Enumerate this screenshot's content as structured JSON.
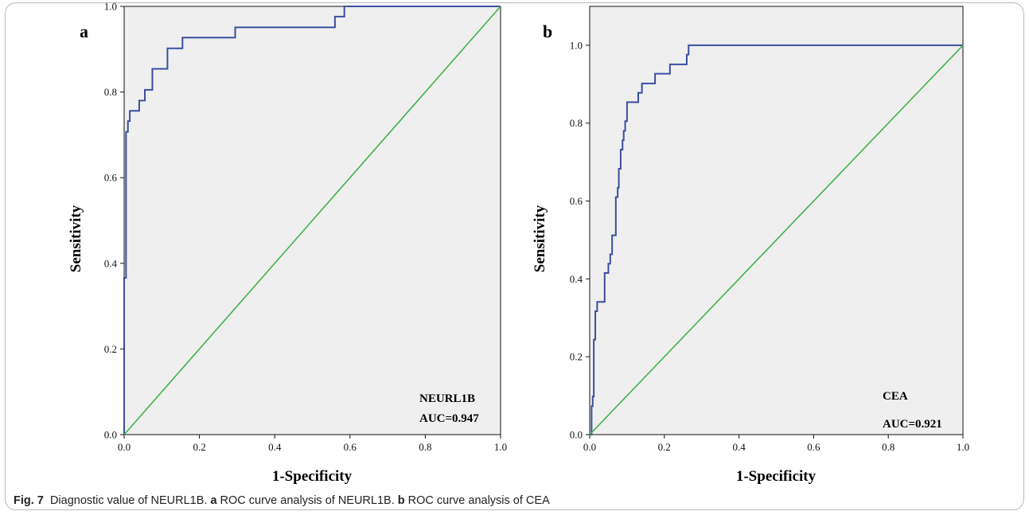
{
  "figure": {
    "caption": {
      "label": "Fig. 7",
      "text_1": "Diagnostic value of NEURL1B. ",
      "ref_a": "a",
      "text_2": " ROC curve analysis of NEURL1B. ",
      "ref_b": "b",
      "text_3": " ROC curve analysis of CEA"
    },
    "colors": {
      "plot_background": "#efefef",
      "roc_curve": "#3a4fa0",
      "reference_line": "#3fb34a"
    }
  },
  "chart_data": [
    {
      "type": "line",
      "panel_label": "a",
      "xlabel": "1-Specificity",
      "ylabel": "Sensitivity",
      "xlim": [
        0,
        1
      ],
      "ylim": [
        0,
        1
      ],
      "xticks": [
        "0.0",
        "0.2",
        "0.4",
        "0.6",
        "0.8",
        "1.0"
      ],
      "yticks": [
        "0.0",
        "0.2",
        "0.4",
        "0.6",
        "0.8",
        "1.0"
      ],
      "annotations": [
        "NEURL1B",
        "AUC=0.947"
      ],
      "series": [
        {
          "role": "roc",
          "x": [
            0,
            0,
            0.005,
            0.005,
            0.01,
            0.01,
            0.015,
            0.015,
            0.04,
            0.04,
            0.055,
            0.055,
            0.075,
            0.075,
            0.115,
            0.115,
            0.155,
            0.155,
            0.295,
            0.295,
            0.56,
            0.56,
            0.585,
            0.585,
            1.0
          ],
          "y": [
            0,
            0.366,
            0.366,
            0.707,
            0.707,
            0.732,
            0.732,
            0.756,
            0.756,
            0.78,
            0.78,
            0.805,
            0.805,
            0.854,
            0.854,
            0.902,
            0.902,
            0.927,
            0.927,
            0.951,
            0.951,
            0.976,
            0.976,
            1.0,
            1.0
          ]
        },
        {
          "role": "reference",
          "x": [
            0,
            1
          ],
          "y": [
            0,
            1
          ]
        }
      ]
    },
    {
      "type": "line",
      "panel_label": "b",
      "xlabel": "1-Specificity",
      "ylabel": "Sensitivity",
      "xlim": [
        0,
        1
      ],
      "ylim": [
        0,
        1.1
      ],
      "xticks": [
        "0.0",
        "0.2",
        "0.4",
        "0.6",
        "0.8",
        "1.0"
      ],
      "yticks": [
        "0.0",
        "0.2",
        "0.4",
        "0.6",
        "0.8",
        "1.0"
      ],
      "annotations": [
        "CEA",
        "AUC=0.921"
      ],
      "series": [
        {
          "role": "roc",
          "x": [
            0,
            0.005,
            0.005,
            0.008,
            0.008,
            0.011,
            0.011,
            0.015,
            0.015,
            0.02,
            0.02,
            0.04,
            0.04,
            0.05,
            0.05,
            0.055,
            0.055,
            0.06,
            0.06,
            0.07,
            0.07,
            0.075,
            0.075,
            0.078,
            0.078,
            0.083,
            0.083,
            0.088,
            0.088,
            0.091,
            0.091,
            0.095,
            0.095,
            0.1,
            0.1,
            0.13,
            0.13,
            0.14,
            0.14,
            0.175,
            0.175,
            0.215,
            0.215,
            0.26,
            0.26,
            0.265,
            0.265,
            0.38,
            0.38,
            1.0
          ],
          "y": [
            0,
            0,
            0.073,
            0.073,
            0.098,
            0.098,
            0.244,
            0.244,
            0.317,
            0.317,
            0.341,
            0.341,
            0.415,
            0.415,
            0.439,
            0.439,
            0.463,
            0.463,
            0.512,
            0.512,
            0.61,
            0.61,
            0.634,
            0.634,
            0.683,
            0.683,
            0.732,
            0.732,
            0.756,
            0.756,
            0.78,
            0.78,
            0.805,
            0.805,
            0.854,
            0.854,
            0.878,
            0.878,
            0.902,
            0.902,
            0.927,
            0.927,
            0.951,
            0.951,
            0.976,
            0.976,
            1.0,
            1.0,
            1.0,
            1.0
          ]
        },
        {
          "role": "reference",
          "x": [
            0,
            1
          ],
          "y": [
            0,
            1
          ]
        }
      ]
    }
  ]
}
